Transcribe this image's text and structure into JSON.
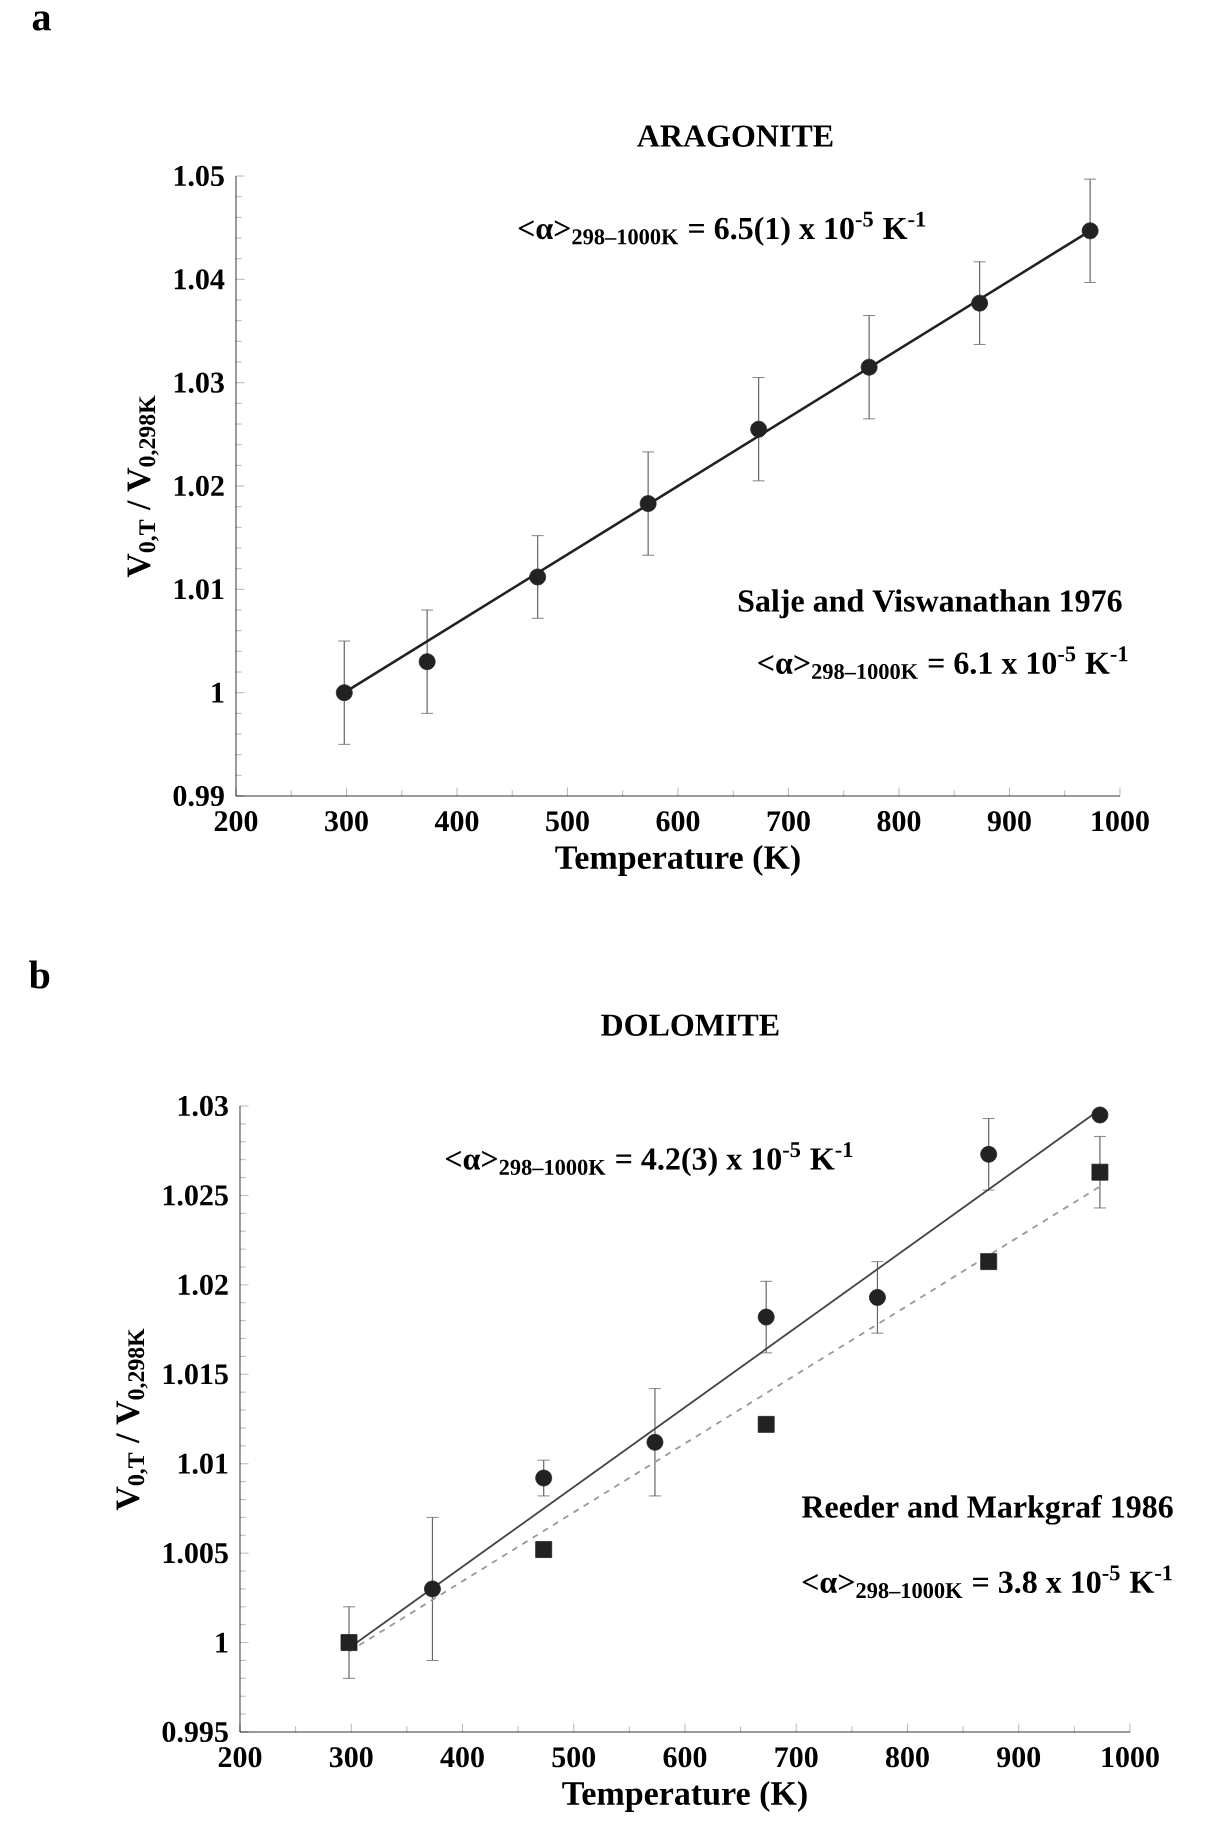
{
  "chart_data": [
    {
      "type": "scatter",
      "title": "ARAGONITE",
      "xlabel": "Temperature (K)",
      "ylabel": "V$_{0,T}$ / V$_{0,298K}$",
      "annotations": [
        "a",
        "<α>$_{298–1000K}$ = 6.5(1) x 10$^{-5}$ K$^{-1}$",
        "Salje and Viswanathan 1976",
        "<α>$_{298–1000K}$ = 6.1 x 10$^{-5}$ K$^{-1}$"
      ],
      "xlim": [
        200,
        1000
      ],
      "ylim": [
        0.99,
        1.05
      ],
      "xticks": [
        200,
        300,
        400,
        500,
        600,
        700,
        800,
        900,
        1000
      ],
      "yticks": [
        0.99,
        1,
        1.01,
        1.02,
        1.03,
        1.04,
        1.05
      ],
      "series": [
        {
          "marker": "circle",
          "color": "#222222",
          "x": [
            298,
            373,
            473,
            573,
            673,
            773,
            873,
            973
          ],
          "values": [
            1.0,
            1.003,
            1.0112,
            1.0183,
            1.0255,
            1.0315,
            1.0377,
            1.0447
          ],
          "errors": [
            0.005,
            0.005,
            0.004,
            0.005,
            0.005,
            0.005,
            0.004,
            0.005
          ]
        },
        {
          "type": "line",
          "line_style": "solid",
          "color": "#222222",
          "x": [
            298,
            973
          ],
          "values": [
            1.0,
            1.0447
          ]
        }
      ]
    },
    {
      "type": "scatter",
      "title": "DOLOMITE",
      "xlabel": "Temperature (K)",
      "ylabel": "V$_{0,T}$ / V$_{0,298K}$",
      "annotations": [
        "b",
        "<α>$_{298–1000K}$ = 4.2(3) x 10$^{-5}$ K$^{-1}$",
        "Reeder and Markgraf 1986",
        "<α>$_{298–1000K}$ = 3.8 x 10$^{-5}$ K$^{-1}$"
      ],
      "xlim": [
        200,
        1000
      ],
      "ylim": [
        0.995,
        1.03
      ],
      "xticks": [
        200,
        300,
        400,
        500,
        600,
        700,
        800,
        900,
        1000
      ],
      "yticks": [
        0.995,
        1,
        1.005,
        1.01,
        1.015,
        1.02,
        1.025,
        1.03
      ],
      "series": [
        {
          "marker": "circle",
          "color": "#222222",
          "x": [
            373,
            473,
            573,
            673,
            773,
            873,
            973
          ],
          "values": [
            1.003,
            1.0092,
            1.0112,
            1.0182,
            1.0193,
            1.0273,
            1.0295
          ],
          "errors": [
            0.004,
            0.001,
            0.003,
            0.002,
            0.002,
            0.002,
            null
          ]
        },
        {
          "marker": "square",
          "color": "#222222",
          "x": [
            298,
            473,
            673,
            873,
            973
          ],
          "values": [
            1.0,
            1.0052,
            1.0122,
            1.0213,
            1.0263
          ],
          "errors": [
            0.002,
            null,
            null,
            null,
            0.002
          ]
        },
        {
          "type": "line",
          "line_style": "solid",
          "color": "#444444",
          "x": [
            305,
            973
          ],
          "values": [
            1.0,
            1.0298
          ]
        },
        {
          "type": "line",
          "line_style": "dashed",
          "color": "#999999",
          "x": [
            298,
            973
          ],
          "values": [
            0.9995,
            1.0255
          ]
        }
      ]
    }
  ]
}
